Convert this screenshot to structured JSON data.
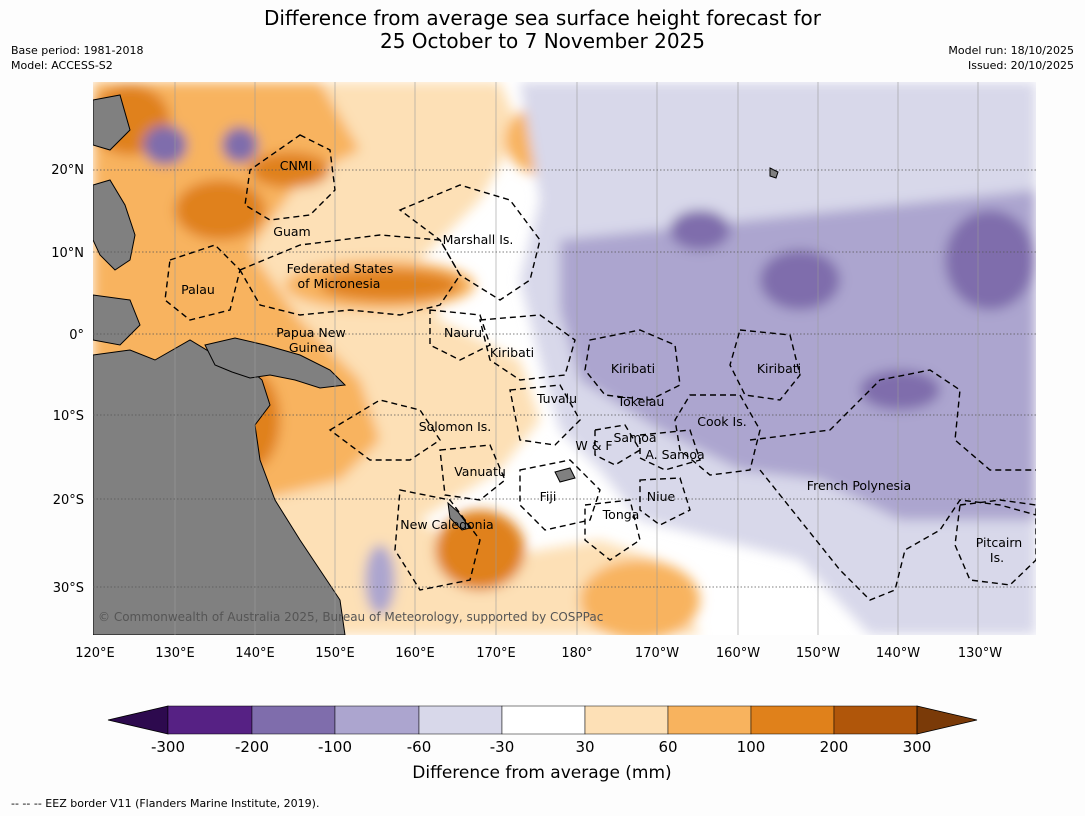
{
  "title": {
    "line1": "Difference from average sea surface height forecast for",
    "line2": "25 October to 7 November 2025"
  },
  "meta": {
    "base_period": "Base period: 1981-2018",
    "model": "Model: ACCESS-S2",
    "model_run": "Model run: 18/10/2025",
    "issued": "Issued: 20/10/2025"
  },
  "map": {
    "lon_ticks": [
      "120°E",
      "130°E",
      "140°E",
      "150°E",
      "160°E",
      "170°E",
      "180°",
      "170°W",
      "160°W",
      "150°W",
      "140°W",
      "130°W"
    ],
    "lat_ticks": [
      "20°N",
      "10°N",
      "0°",
      "10°S",
      "20°S",
      "30°S"
    ],
    "places": [
      "CNMI",
      "Guam",
      "Marshall Is.",
      "Federated States",
      "of Micronesia",
      "Palau",
      "Nauru",
      "Papua New",
      "Guinea",
      "Kiribati",
      "Kiribati",
      "Kiribati",
      "Tuvalu",
      "Tokelau",
      "Cook Is.",
      "Solomon Is.",
      "W & F",
      "Samoa",
      "A. Samoa",
      "Vanuatu",
      "Fiji",
      "Niue",
      "Tonga",
      "French Polynesia",
      "New Caledonia",
      "Pitcairn",
      "Is."
    ],
    "copyright": "© Commonwealth of Australia 2025, Bureau of Meteorology, supported by COSPPac"
  },
  "colorbar": {
    "ticks": [
      "-300",
      "-200",
      "-100",
      "-60",
      "-30",
      "30",
      "60",
      "100",
      "200",
      "300"
    ],
    "colors": [
      "#2d0a4e",
      "#562184",
      "#7f6dac",
      "#aca5cf",
      "#d8d8ea",
      "#ffffff",
      "#fde0b6",
      "#f8b35e",
      "#e0811b",
      "#b0560a",
      "#7a3a08"
    ],
    "label": "Difference from average (mm)"
  },
  "footnote": "--  --  -- EEZ border V11 (Flanders Marine Institute, 2019)."
}
